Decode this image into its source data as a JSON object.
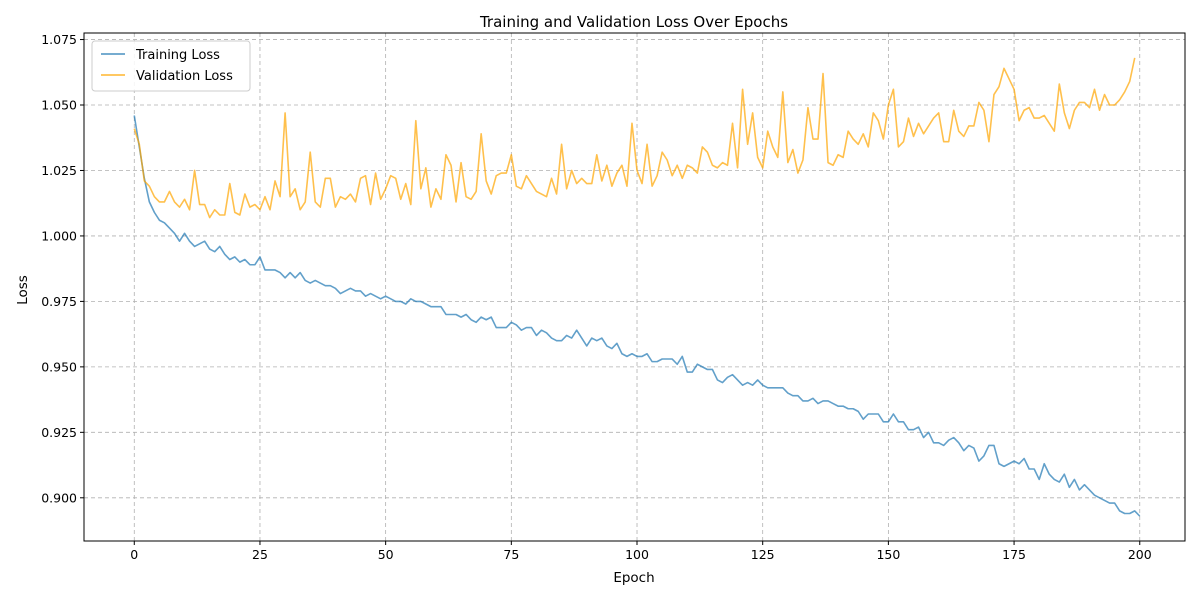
{
  "chart_data": {
    "type": "line",
    "title": "Training and Validation Loss Over Epochs",
    "xlabel": "Epoch",
    "ylabel": "Loss",
    "xlim": [
      -10,
      209
    ],
    "ylim": [
      0.8835,
      1.0775
    ],
    "xticks": [
      0,
      25,
      50,
      75,
      100,
      125,
      150,
      175,
      200
    ],
    "yticks": [
      0.9,
      0.925,
      0.95,
      0.975,
      1.0,
      1.025,
      1.05,
      1.075
    ],
    "ytick_labels": [
      "0.900",
      "0.925",
      "0.950",
      "0.975",
      "1.000",
      "1.025",
      "1.050",
      "1.075"
    ],
    "grid": true,
    "legend_position": "upper-left",
    "x_start": 0,
    "series": [
      {
        "name": "Training Loss",
        "color": "#1f77b4",
        "values": [
          1.046,
          1.034,
          1.022,
          1.013,
          1.009,
          1.006,
          1.005,
          1.003,
          1.001,
          0.998,
          1.001,
          0.998,
          0.996,
          0.997,
          0.998,
          0.995,
          0.994,
          0.996,
          0.993,
          0.991,
          0.992,
          0.99,
          0.991,
          0.989,
          0.989,
          0.992,
          0.987,
          0.987,
          0.987,
          0.986,
          0.984,
          0.986,
          0.984,
          0.986,
          0.983,
          0.982,
          0.983,
          0.982,
          0.981,
          0.981,
          0.98,
          0.978,
          0.979,
          0.98,
          0.979,
          0.979,
          0.977,
          0.978,
          0.977,
          0.976,
          0.977,
          0.976,
          0.975,
          0.975,
          0.974,
          0.976,
          0.975,
          0.975,
          0.974,
          0.973,
          0.973,
          0.973,
          0.97,
          0.97,
          0.97,
          0.969,
          0.97,
          0.968,
          0.967,
          0.969,
          0.968,
          0.969,
          0.965,
          0.965,
          0.965,
          0.967,
          0.966,
          0.964,
          0.965,
          0.965,
          0.962,
          0.964,
          0.963,
          0.961,
          0.96,
          0.96,
          0.962,
          0.961,
          0.964,
          0.961,
          0.958,
          0.961,
          0.96,
          0.961,
          0.958,
          0.957,
          0.959,
          0.955,
          0.954,
          0.955,
          0.954,
          0.954,
          0.955,
          0.952,
          0.952,
          0.953,
          0.953,
          0.953,
          0.951,
          0.954,
          0.948,
          0.948,
          0.951,
          0.95,
          0.949,
          0.949,
          0.945,
          0.944,
          0.946,
          0.947,
          0.945,
          0.943,
          0.944,
          0.943,
          0.945,
          0.943,
          0.942,
          0.942,
          0.942,
          0.942,
          0.94,
          0.939,
          0.939,
          0.937,
          0.937,
          0.938,
          0.936,
          0.937,
          0.937,
          0.936,
          0.935,
          0.935,
          0.934,
          0.934,
          0.933,
          0.93,
          0.932,
          0.932,
          0.932,
          0.929,
          0.929,
          0.932,
          0.929,
          0.929,
          0.926,
          0.926,
          0.927,
          0.923,
          0.925,
          0.921,
          0.921,
          0.92,
          0.922,
          0.923,
          0.921,
          0.918,
          0.92,
          0.919,
          0.914,
          0.916,
          0.92,
          0.92,
          0.913,
          0.912,
          0.913,
          0.914,
          0.913,
          0.915,
          0.911,
          0.911,
          0.907,
          0.913,
          0.909,
          0.907,
          0.906,
          0.909,
          0.904,
          0.907,
          0.903,
          0.905,
          0.903,
          0.901,
          0.9,
          0.899,
          0.898,
          0.898,
          0.895,
          0.894,
          0.894,
          0.895,
          0.893
        ]
      },
      {
        "name": "Validation Loss",
        "color": "#ffa500",
        "values": [
          1.041,
          1.035,
          1.021,
          1.019,
          1.015,
          1.013,
          1.013,
          1.017,
          1.013,
          1.011,
          1.014,
          1.01,
          1.025,
          1.012,
          1.012,
          1.007,
          1.01,
          1.008,
          1.008,
          1.02,
          1.009,
          1.008,
          1.016,
          1.011,
          1.012,
          1.01,
          1.015,
          1.01,
          1.021,
          1.015,
          1.047,
          1.015,
          1.018,
          1.01,
          1.013,
          1.032,
          1.013,
          1.011,
          1.022,
          1.022,
          1.011,
          1.015,
          1.014,
          1.016,
          1.013,
          1.022,
          1.023,
          1.012,
          1.024,
          1.014,
          1.018,
          1.023,
          1.022,
          1.014,
          1.02,
          1.012,
          1.044,
          1.018,
          1.026,
          1.011,
          1.018,
          1.014,
          1.031,
          1.027,
          1.013,
          1.028,
          1.015,
          1.014,
          1.017,
          1.039,
          1.021,
          1.016,
          1.023,
          1.024,
          1.024,
          1.031,
          1.019,
          1.018,
          1.023,
          1.02,
          1.017,
          1.016,
          1.015,
          1.022,
          1.016,
          1.035,
          1.018,
          1.025,
          1.02,
          1.022,
          1.02,
          1.02,
          1.031,
          1.021,
          1.027,
          1.019,
          1.024,
          1.027,
          1.019,
          1.043,
          1.025,
          1.02,
          1.035,
          1.019,
          1.023,
          1.032,
          1.029,
          1.023,
          1.027,
          1.022,
          1.027,
          1.026,
          1.024,
          1.034,
          1.032,
          1.027,
          1.026,
          1.028,
          1.027,
          1.043,
          1.026,
          1.056,
          1.035,
          1.047,
          1.03,
          1.026,
          1.04,
          1.034,
          1.03,
          1.055,
          1.028,
          1.033,
          1.024,
          1.029,
          1.049,
          1.037,
          1.037,
          1.062,
          1.028,
          1.027,
          1.031,
          1.03,
          1.04,
          1.037,
          1.035,
          1.039,
          1.034,
          1.047,
          1.044,
          1.037,
          1.05,
          1.056,
          1.034,
          1.036,
          1.045,
          1.038,
          1.043,
          1.039,
          1.042,
          1.045,
          1.047,
          1.036,
          1.036,
          1.048,
          1.04,
          1.038,
          1.042,
          1.042,
          1.051,
          1.048,
          1.036,
          1.054,
          1.057,
          1.064,
          1.06,
          1.056,
          1.044,
          1.048,
          1.049,
          1.045,
          1.045,
          1.046,
          1.043,
          1.04,
          1.058,
          1.047,
          1.041,
          1.048,
          1.051,
          1.051,
          1.049,
          1.056,
          1.048,
          1.054,
          1.05,
          1.05,
          1.052,
          1.055,
          1.059,
          1.068
        ]
      }
    ]
  }
}
